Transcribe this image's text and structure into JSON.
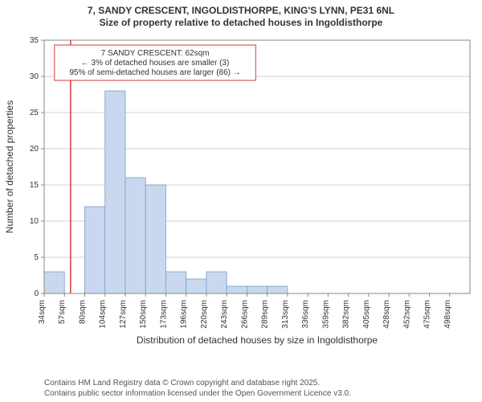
{
  "title": {
    "line1": "7, SANDY CRESCENT, INGOLDISTHORPE, KING'S LYNN, PE31 6NL",
    "line2": "Size of property relative to detached houses in Ingoldisthorpe"
  },
  "chart": {
    "type": "histogram",
    "background_color": "#ffffff",
    "plot_border_color": "#888888",
    "grid_color": "#d0d0d0",
    "bar_fill": "#c9d8ef",
    "bar_stroke": "#7a9cc6",
    "marker_line_color": "#d63a3a",
    "marker_line_width": 1.5,
    "xlabel": "Distribution of detached houses by size in Ingoldisthorpe",
    "ylabel": "Number of detached properties",
    "x_tick_labels": [
      "34sqm",
      "57sqm",
      "80sqm",
      "104sqm",
      "127sqm",
      "150sqm",
      "173sqm",
      "196sqm",
      "220sqm",
      "243sqm",
      "266sqm",
      "289sqm",
      "313sqm",
      "336sqm",
      "359sqm",
      "382sqm",
      "405sqm",
      "428sqm",
      "452sqm",
      "475sqm",
      "498sqm"
    ],
    "y_ticks": [
      0,
      5,
      10,
      15,
      20,
      25,
      30,
      35
    ],
    "ylim": [
      0,
      35
    ],
    "bars": [
      3,
      0,
      12,
      28,
      16,
      15,
      3,
      2,
      3,
      1,
      1,
      1,
      0,
      0,
      0,
      0,
      0,
      0,
      0,
      0,
      0
    ],
    "n_bars": 21,
    "marker_bin_index": 1.3,
    "annotation": {
      "border_color": "#d63a3a",
      "bg_color": "#ffffff",
      "lines": [
        "7 SANDY CRESCENT: 62sqm",
        "← 3% of detached houses are smaller (3)",
        "95% of semi-detached houses are larger (86) →"
      ]
    },
    "axis_label_fontsize": 12,
    "tick_fontsize": 10,
    "annotation_fontsize": 10
  },
  "footnote": {
    "line1": "Contains HM Land Registry data © Crown copyright and database right 2025.",
    "line2": "Contains public sector information licensed under the Open Government Licence v3.0."
  }
}
